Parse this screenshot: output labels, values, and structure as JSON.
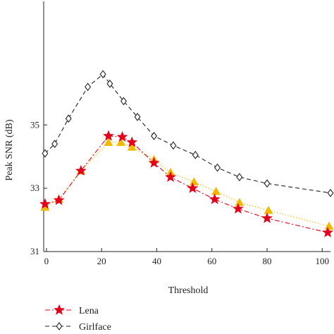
{
  "chart_data": {
    "type": "line",
    "xlabel": "Threshold",
    "ylabel": "Peak SNR (dB)",
    "xlim": [
      -1,
      103
    ],
    "ylim": [
      31,
      38.9
    ],
    "xticks": [
      0,
      20,
      40,
      60,
      80,
      100
    ],
    "yticks": [
      31,
      33,
      35
    ],
    "x_tick_labels": [
      "0",
      "20",
      "40",
      "60",
      "80",
      "100"
    ],
    "y_tick_labels": [
      "31",
      "33",
      "35"
    ],
    "grid": false,
    "legend_position": "bottom-left, below plot",
    "series": [
      {
        "name": "Lena",
        "color": "#e3001b",
        "marker": "star",
        "line_style": "dash-dot",
        "points": [
          [
            -0.5,
            32.5
          ],
          [
            4.5,
            32.62
          ],
          [
            12.5,
            33.55
          ],
          [
            22.5,
            34.65
          ],
          [
            27.5,
            34.62
          ],
          [
            31,
            34.45
          ],
          [
            39,
            33.8
          ],
          [
            45,
            33.35
          ],
          [
            53,
            33.0
          ],
          [
            61,
            32.65
          ],
          [
            69.5,
            32.35
          ],
          [
            80,
            32.05
          ],
          [
            102,
            31.6
          ]
        ]
      },
      {
        "name": "",
        "color": "#f5b800",
        "marker": "triangle",
        "line_style": "dotted",
        "points": [
          [
            -0.5,
            32.4
          ],
          [
            4.5,
            32.65
          ],
          [
            12.5,
            33.55
          ],
          [
            22.5,
            34.45
          ],
          [
            27,
            34.45
          ],
          [
            31,
            34.3
          ],
          [
            39,
            33.9
          ],
          [
            45,
            33.5
          ],
          [
            53.5,
            33.2
          ],
          [
            61.5,
            32.9
          ],
          [
            70,
            32.55
          ],
          [
            80.5,
            32.3
          ],
          [
            102.5,
            31.8
          ]
        ]
      },
      {
        "name": "Girlface",
        "color": "#222222",
        "marker": "diamond-open",
        "line_style": "dashed",
        "points": [
          [
            -0.5,
            34.1
          ],
          [
            3,
            34.4
          ],
          [
            8,
            35.2
          ],
          [
            15,
            36.2
          ],
          [
            20.5,
            36.6
          ],
          [
            23,
            36.3
          ],
          [
            28,
            35.75
          ],
          [
            33,
            35.25
          ],
          [
            39,
            34.65
          ],
          [
            46,
            34.35
          ],
          [
            54,
            34.05
          ],
          [
            62,
            33.65
          ],
          [
            70,
            33.35
          ],
          [
            80,
            33.15
          ],
          [
            103,
            32.85
          ]
        ]
      }
    ]
  }
}
